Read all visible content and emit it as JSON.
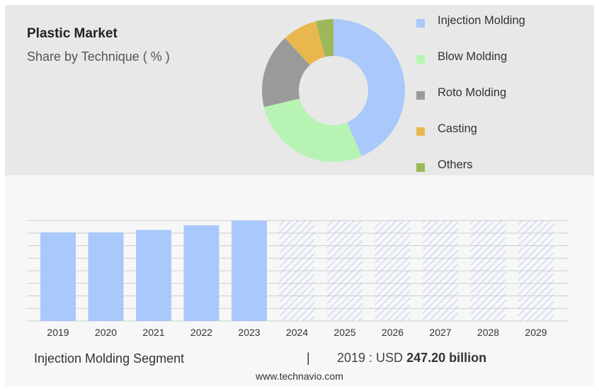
{
  "header": {
    "title": "Plastic Market",
    "subtitle": "Share by Technique ( % )"
  },
  "colors": {
    "forecast_hatch": "#a9c5f5",
    "bar": "#a9c8fb",
    "grid": "#cfcfcf"
  },
  "chart_data": [
    {
      "type": "pie",
      "style": "donut",
      "categories": [
        "Injection Molding",
        "Blow Molding",
        "Roto Molding",
        "Casting",
        "Others"
      ],
      "values": [
        44,
        28,
        17,
        8,
        4
      ],
      "colors": [
        "#a9c8fb",
        "#b7f4b4",
        "#9a9a9a",
        "#e8b84f",
        "#9db75a"
      ],
      "legend_position": "right"
    },
    {
      "type": "bar",
      "categories": [
        "2019",
        "2020",
        "2021",
        "2022",
        "2023",
        "2024",
        "2025",
        "2026",
        "2027",
        "2028",
        "2029"
      ],
      "values": [
        247.2,
        247.2,
        254,
        267,
        280,
        280,
        280,
        280,
        280,
        280,
        280
      ],
      "forecast_from": "2024",
      "grid": true,
      "ylim": [
        0,
        280
      ]
    }
  ],
  "footer": {
    "segment": "Injection Molding Segment",
    "separator": "|",
    "value_prefix": "2019 : USD",
    "value": "247.20 billion",
    "source": "www.technavio.com"
  }
}
